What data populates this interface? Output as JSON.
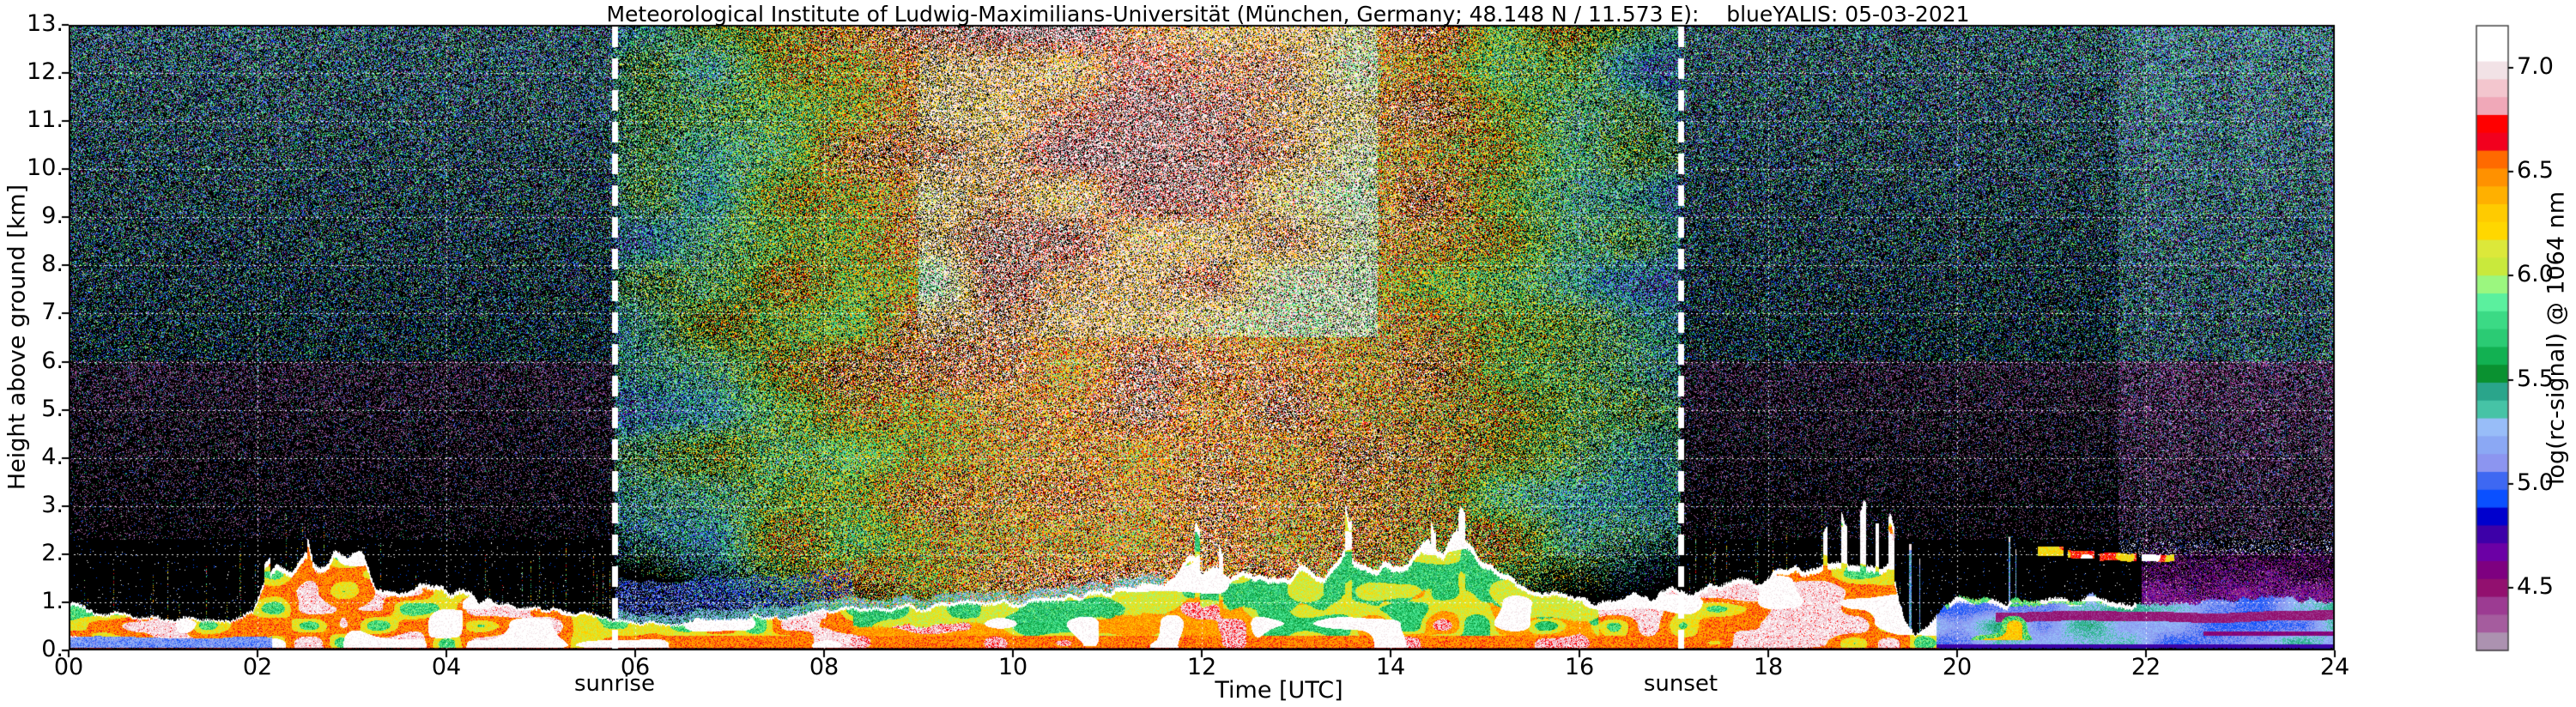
{
  "title": "Meteorological Institute of Ludwig-Maximilians-Universität (München, Germany; 48.148 N / 11.573 E):    blueYALIS: 05-03-2021",
  "axes": {
    "xlabel": "Time [UTC]",
    "ylabel": "Height above ground [km]",
    "x_tick_labels": [
      "00",
      "02",
      "04",
      "06",
      "08",
      "10",
      "12",
      "14",
      "16",
      "18",
      "20",
      "22",
      "24"
    ],
    "y_tick_labels": [
      "0.",
      "1.",
      "2.",
      "3.",
      "4.",
      "5.",
      "6.",
      "7.",
      "8.",
      "9.",
      "10.",
      "11.",
      "12.",
      "13."
    ]
  },
  "annotations": {
    "sunrise_label": "sunrise",
    "sunset_label": "sunset"
  },
  "colorbar": {
    "label": "log(rc-signal) @ 1064 nm",
    "tick_labels": [
      "7.0",
      "6.5",
      "6.0",
      "5.5",
      "5.0",
      "4.5"
    ],
    "value_range": [
      4.2,
      7.2
    ],
    "colors_top_to_bottom": [
      "#FFFFFF",
      "#FFFFFF",
      "#F2E2E6",
      "#F3C6CE",
      "#F0A8B8",
      "#FF0000",
      "#F2001E",
      "#FF6A00",
      "#FF9100",
      "#FFB000",
      "#FFCB00",
      "#FFD700",
      "#DCE83A",
      "#C9E93C",
      "#9BF77F",
      "#5BF09E",
      "#3BDA85",
      "#2BCB74",
      "#12B152",
      "#0A9130",
      "#2AA58B",
      "#46C3A6",
      "#98BDF8",
      "#8BA8F4",
      "#8C95F0",
      "#3E68F2",
      "#0A50FF",
      "#0000CD",
      "#3D00A8",
      "#6B00A5",
      "#7E0080",
      "#92106F",
      "#9C3B92",
      "#A55C9E",
      "#AC92B0"
    ]
  },
  "chart_data": {
    "type": "heatmap",
    "title": "Meteorological Institute of Ludwig-Maximilians-Universität (München, Germany; 48.148 N / 11.573 E):    blueYALIS: 05-03-2021",
    "xlabel": "Time [UTC]",
    "ylabel": "Height above ground [km]",
    "x_range_hours": [
      0,
      24
    ],
    "y_range_km": [
      0,
      13
    ],
    "x_ticks": [
      0,
      2,
      4,
      6,
      8,
      10,
      12,
      14,
      16,
      18,
      20,
      22,
      24
    ],
    "y_ticks": [
      0,
      1,
      2,
      3,
      4,
      5,
      6,
      7,
      8,
      9,
      10,
      11,
      12,
      13
    ],
    "grid": true,
    "colorbar_label": "log(rc-signal) @ 1064 nm",
    "colorbar_ticks": [
      7.0,
      6.5,
      6.0,
      5.5,
      5.0,
      4.5
    ],
    "colorbar_range": [
      4.2,
      7.2
    ],
    "sunrise_utc": 5.78,
    "sunset_utc": 17.07,
    "boundary_layer_top_km": [
      [
        0.0,
        0.95
      ],
      [
        0.3,
        0.8
      ],
      [
        0.7,
        0.68
      ],
      [
        1.2,
        0.62
      ],
      [
        1.7,
        0.65
      ],
      [
        1.95,
        0.8
      ],
      [
        2.05,
        1.35
      ],
      [
        2.2,
        1.75
      ],
      [
        2.35,
        1.6
      ],
      [
        2.5,
        1.95
      ],
      [
        2.65,
        1.8
      ],
      [
        2.8,
        2.0
      ],
      [
        2.95,
        1.85
      ],
      [
        3.1,
        1.95
      ],
      [
        3.25,
        1.3
      ],
      [
        3.5,
        1.2
      ],
      [
        3.8,
        1.3
      ],
      [
        4.1,
        1.2
      ],
      [
        4.4,
        1.05
      ],
      [
        4.7,
        0.95
      ],
      [
        5.0,
        0.9
      ],
      [
        5.3,
        0.8
      ],
      [
        5.6,
        0.7
      ],
      [
        5.9,
        0.6
      ],
      [
        6.3,
        0.55
      ],
      [
        6.7,
        0.6
      ],
      [
        7.1,
        0.65
      ],
      [
        7.6,
        0.7
      ],
      [
        8.0,
        0.8
      ],
      [
        8.5,
        0.85
      ],
      [
        9.0,
        0.9
      ],
      [
        9.5,
        0.95
      ],
      [
        10.0,
        1.0
      ],
      [
        10.4,
        1.05
      ],
      [
        10.8,
        1.1
      ],
      [
        11.1,
        1.25
      ],
      [
        11.35,
        1.45
      ],
      [
        11.6,
        1.25
      ],
      [
        11.85,
        1.9
      ],
      [
        12.0,
        1.6
      ],
      [
        12.15,
        1.8
      ],
      [
        12.3,
        1.45
      ],
      [
        12.5,
        1.55
      ],
      [
        12.7,
        1.35
      ],
      [
        12.9,
        1.5
      ],
      [
        13.1,
        1.6
      ],
      [
        13.3,
        1.45
      ],
      [
        13.5,
        2.1
      ],
      [
        13.65,
        1.9
      ],
      [
        13.85,
        1.6
      ],
      [
        14.0,
        1.7
      ],
      [
        14.2,
        1.9
      ],
      [
        14.4,
        2.4
      ],
      [
        14.55,
        2.1
      ],
      [
        14.7,
        2.6
      ],
      [
        14.85,
        2.2
      ],
      [
        15.0,
        1.8
      ],
      [
        15.2,
        1.5
      ],
      [
        15.5,
        1.25
      ],
      [
        15.8,
        1.1
      ],
      [
        16.1,
        1.0
      ],
      [
        16.5,
        1.05
      ],
      [
        16.9,
        1.15
      ],
      [
        17.3,
        1.25
      ],
      [
        17.7,
        1.4
      ],
      [
        18.1,
        1.55
      ],
      [
        18.5,
        1.7
      ],
      [
        18.8,
        1.8
      ],
      [
        19.05,
        1.75
      ],
      [
        19.3,
        1.65
      ],
      [
        19.45,
        0.6
      ],
      [
        19.55,
        0.3
      ],
      [
        19.7,
        0.5
      ],
      [
        19.85,
        0.9
      ],
      [
        20.0,
        1.05
      ],
      [
        20.5,
        1.0
      ],
      [
        21.0,
        1.05
      ],
      [
        21.4,
        1.1
      ],
      [
        21.8,
        1.0
      ],
      [
        22.2,
        0.95
      ],
      [
        22.8,
        1.0
      ],
      [
        23.4,
        1.05
      ],
      [
        24.0,
        1.0
      ]
    ],
    "convective_towers": [
      [
        2.1,
        0.035,
        1.95
      ],
      [
        2.55,
        0.03,
        2.1
      ],
      [
        11.95,
        0.03,
        2.55
      ],
      [
        12.2,
        0.025,
        2.2
      ],
      [
        13.55,
        0.035,
        2.85
      ],
      [
        14.45,
        0.03,
        2.6
      ],
      [
        14.75,
        0.035,
        2.85
      ],
      [
        18.6,
        0.025,
        2.45
      ],
      [
        18.8,
        0.03,
        2.65
      ],
      [
        19.0,
        0.035,
        2.85
      ],
      [
        19.15,
        0.02,
        2.5
      ],
      [
        19.3,
        0.03,
        2.75
      ]
    ],
    "blue_streaks": [
      [
        19.5,
        0.01,
        2.2
      ],
      [
        19.6,
        0.008,
        1.9
      ],
      [
        20.55,
        0.008,
        2.35
      ],
      [
        20.62,
        0.007,
        2.1
      ]
    ],
    "cloud_streaks": [
      [
        20.85,
        21.12,
        2.02,
        0.1
      ],
      [
        21.17,
        21.45,
        1.97,
        0.08
      ],
      [
        21.5,
        21.9,
        1.9,
        0.08
      ],
      [
        21.95,
        22.3,
        1.88,
        0.07
      ]
    ],
    "features": [
      "nocturnal aerosol layer 0-1 km with white-capped red/orange signal 00-06 UTC",
      "elevated plumes to ~2 km around 02-03 UTC",
      "strong solar background noise between sunrise (~05:47) and sunset (~17:04), whitest 09-15 UTC aloft",
      "convective boundary layer growing to ~1.5-2.8 km with towers 11-15 UTC",
      "evening residual layer with towers to ~2.9 km 18-19:30 UTC",
      "low-level blue (weak-signal) layer ~0-1 km after 20 UTC with purple haze above 22-24 UTC",
      "thin cloud streaks near 1.9-2.0 km between 20:50 and 22:20 UTC"
    ]
  }
}
